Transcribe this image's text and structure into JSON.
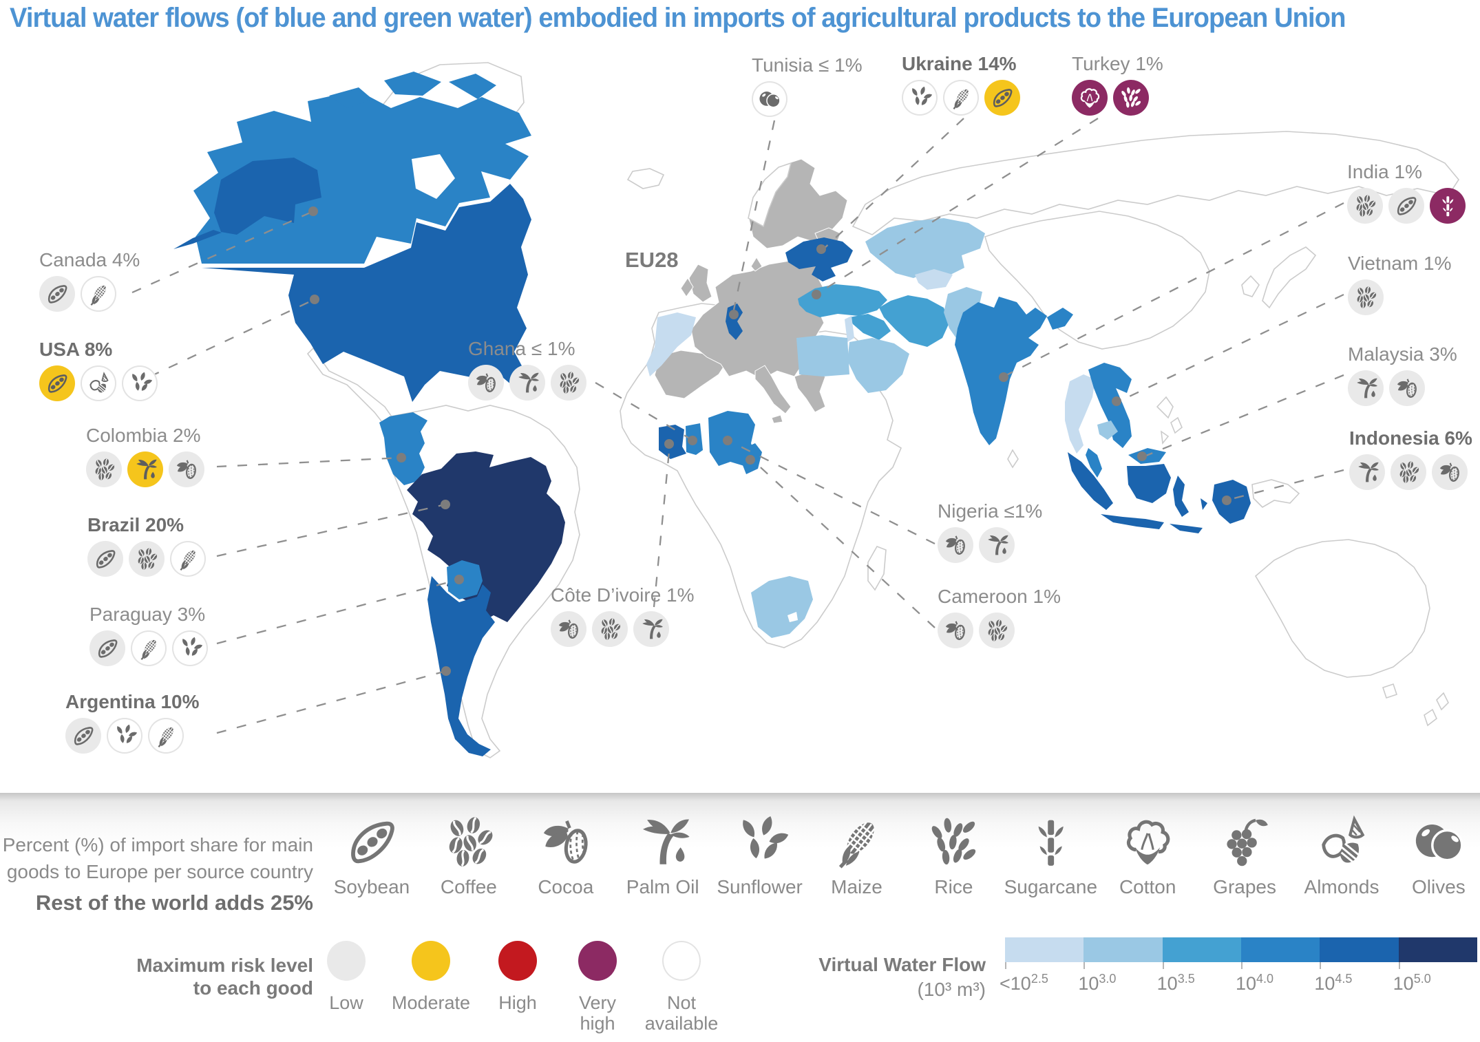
{
  "title": "Virtual water flows (of blue and green water) embodied in imports of agricultural products to the European Union",
  "map": {
    "eu_label": "EU28",
    "eu_color": "#B5B5B5",
    "countries": [
      {
        "id": "canada",
        "label": "Canada 4%",
        "bold": false,
        "goods": [
          {
            "icon": "soybean",
            "risk": "low"
          },
          {
            "icon": "maize",
            "risk": "not-available"
          }
        ]
      },
      {
        "id": "usa",
        "label": "USA 8%",
        "bold": true,
        "goods": [
          {
            "icon": "soybean",
            "risk": "moderate"
          },
          {
            "icon": "almonds",
            "risk": "not-available"
          },
          {
            "icon": "sunflower",
            "risk": "not-available"
          }
        ]
      },
      {
        "id": "colombia",
        "label": "Colombia 2%",
        "bold": false,
        "goods": [
          {
            "icon": "coffee",
            "risk": "low"
          },
          {
            "icon": "palm-oil",
            "risk": "moderate"
          },
          {
            "icon": "cocoa",
            "risk": "low"
          }
        ]
      },
      {
        "id": "brazil",
        "label": "Brazil 20%",
        "bold": true,
        "goods": [
          {
            "icon": "soybean",
            "risk": "low"
          },
          {
            "icon": "coffee",
            "risk": "low"
          },
          {
            "icon": "maize",
            "risk": "not-available"
          }
        ]
      },
      {
        "id": "paraguay",
        "label": "Paraguay 3%",
        "bold": false,
        "goods": [
          {
            "icon": "soybean",
            "risk": "low"
          },
          {
            "icon": "maize",
            "risk": "not-available"
          },
          {
            "icon": "sunflower",
            "risk": "not-available"
          }
        ]
      },
      {
        "id": "argentina",
        "label": "Argentina 10%",
        "bold": true,
        "goods": [
          {
            "icon": "soybean",
            "risk": "low"
          },
          {
            "icon": "sunflower",
            "risk": "not-available"
          },
          {
            "icon": "maize",
            "risk": "not-available"
          }
        ]
      },
      {
        "id": "tunisia",
        "label": "Tunisia ≤ 1%",
        "bold": false,
        "goods": [
          {
            "icon": "olives",
            "risk": "not-available"
          }
        ]
      },
      {
        "id": "ukraine",
        "label": "Ukraine 14%",
        "bold": true,
        "goods": [
          {
            "icon": "sunflower",
            "risk": "not-available"
          },
          {
            "icon": "maize",
            "risk": "not-available"
          },
          {
            "icon": "soybean",
            "risk": "moderate"
          }
        ]
      },
      {
        "id": "turkey",
        "label": "Turkey 1%",
        "bold": false,
        "goods": [
          {
            "icon": "cotton",
            "risk": "very-high"
          },
          {
            "icon": "rice",
            "risk": "very-high"
          }
        ]
      },
      {
        "id": "ghana",
        "label": "Ghana ≤ 1%",
        "bold": false,
        "goods": [
          {
            "icon": "cocoa",
            "risk": "low"
          },
          {
            "icon": "palm-oil",
            "risk": "low"
          },
          {
            "icon": "coffee",
            "risk": "low"
          }
        ]
      },
      {
        "id": "cote-divoire",
        "label": "Côte D’ivoire 1%",
        "bold": false,
        "goods": [
          {
            "icon": "cocoa",
            "risk": "low"
          },
          {
            "icon": "coffee",
            "risk": "low"
          },
          {
            "icon": "palm-oil",
            "risk": "low"
          }
        ]
      },
      {
        "id": "nigeria",
        "label": "Nigeria ≤1%",
        "bold": false,
        "goods": [
          {
            "icon": "cocoa",
            "risk": "low"
          },
          {
            "icon": "palm-oil",
            "risk": "low"
          }
        ]
      },
      {
        "id": "cameroon",
        "label": "Cameroon 1%",
        "bold": false,
        "goods": [
          {
            "icon": "cocoa",
            "risk": "low"
          },
          {
            "icon": "coffee",
            "risk": "low"
          }
        ]
      },
      {
        "id": "india",
        "label": "India 1%",
        "bold": false,
        "goods": [
          {
            "icon": "coffee",
            "risk": "low"
          },
          {
            "icon": "soybean",
            "risk": "low"
          },
          {
            "icon": "sugarcane",
            "risk": "very-high"
          }
        ]
      },
      {
        "id": "vietnam",
        "label": "Vietnam 1%",
        "bold": false,
        "goods": [
          {
            "icon": "coffee",
            "risk": "low"
          }
        ]
      },
      {
        "id": "malaysia",
        "label": "Malaysia 3%",
        "bold": false,
        "goods": [
          {
            "icon": "palm-oil",
            "risk": "low"
          },
          {
            "icon": "cocoa",
            "risk": "low"
          }
        ]
      },
      {
        "id": "indonesia",
        "label": "Indonesia 6%",
        "bold": true,
        "goods": [
          {
            "icon": "palm-oil",
            "risk": "low"
          },
          {
            "icon": "coffee",
            "risk": "low"
          },
          {
            "icon": "cocoa",
            "risk": "low"
          }
        ]
      }
    ]
  },
  "legend": {
    "note": {
      "line1": "Percent (%) of import share for main",
      "line2": "goods to Europe per source country",
      "line3_bold": "Rest of the world adds 25%"
    },
    "commodities": [
      {
        "icon": "soybean",
        "label": "Soybean"
      },
      {
        "icon": "coffee",
        "label": "Coffee"
      },
      {
        "icon": "cocoa",
        "label": "Cocoa"
      },
      {
        "icon": "palm-oil",
        "label": "Palm Oil"
      },
      {
        "icon": "sunflower",
        "label": "Sunflower"
      },
      {
        "icon": "maize",
        "label": "Maize"
      },
      {
        "icon": "rice",
        "label": "Rice"
      },
      {
        "icon": "sugarcane",
        "label": "Sugarcane"
      },
      {
        "icon": "cotton",
        "label": "Cotton"
      },
      {
        "icon": "grapes",
        "label": "Grapes"
      },
      {
        "icon": "almonds",
        "label": "Almonds"
      },
      {
        "icon": "olives",
        "label": "Olives"
      }
    ],
    "risk": {
      "title_line1": "Maximum risk level",
      "title_line2": "to each good",
      "levels": [
        {
          "id": "low",
          "label": "Low"
        },
        {
          "id": "moderate",
          "label": "Moderate"
        },
        {
          "id": "high",
          "label": "High"
        },
        {
          "id": "very-high",
          "label": "Very high"
        },
        {
          "id": "not-available",
          "label": "Not available"
        }
      ]
    },
    "risk_colors": {
      "low": "#E9E9E9",
      "moderate": "#F5C51C",
      "high": "#C3191F",
      "very-high": "#8C2A63",
      "not-available": "#FFFFFF"
    },
    "water_flow": {
      "title": "Virtual Water Flow",
      "unit": "(10³ m³)",
      "colors": [
        "#C6DCEF",
        "#9AC8E4",
        "#44A1D2",
        "#2A83C6",
        "#1B64AE",
        "#20386B"
      ],
      "ticks": [
        {
          "base": "<10",
          "exp": "2.5"
        },
        {
          "base": "10",
          "exp": "3.0"
        },
        {
          "base": "10",
          "exp": "3.5"
        },
        {
          "base": "10",
          "exp": "4.0"
        },
        {
          "base": "10",
          "exp": "4.5"
        },
        {
          "base": "10",
          "exp": "5.0"
        }
      ]
    }
  }
}
